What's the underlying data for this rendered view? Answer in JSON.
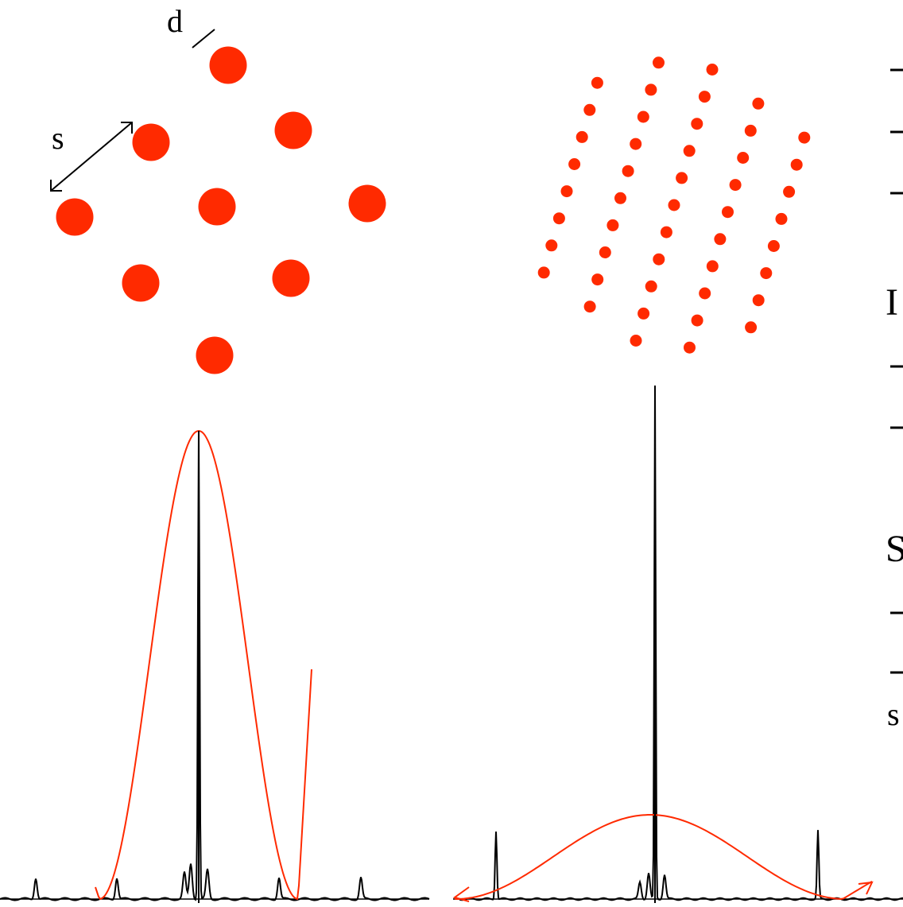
{
  "labels": {
    "d": "d",
    "s": "s"
  },
  "right_text": {
    "letter_I": "I",
    "letter_S": "S",
    "letter_s": "s"
  },
  "colors": {
    "dot": "#ff2a00",
    "envelope": "#ff2a00",
    "ink": "#000000"
  }
}
